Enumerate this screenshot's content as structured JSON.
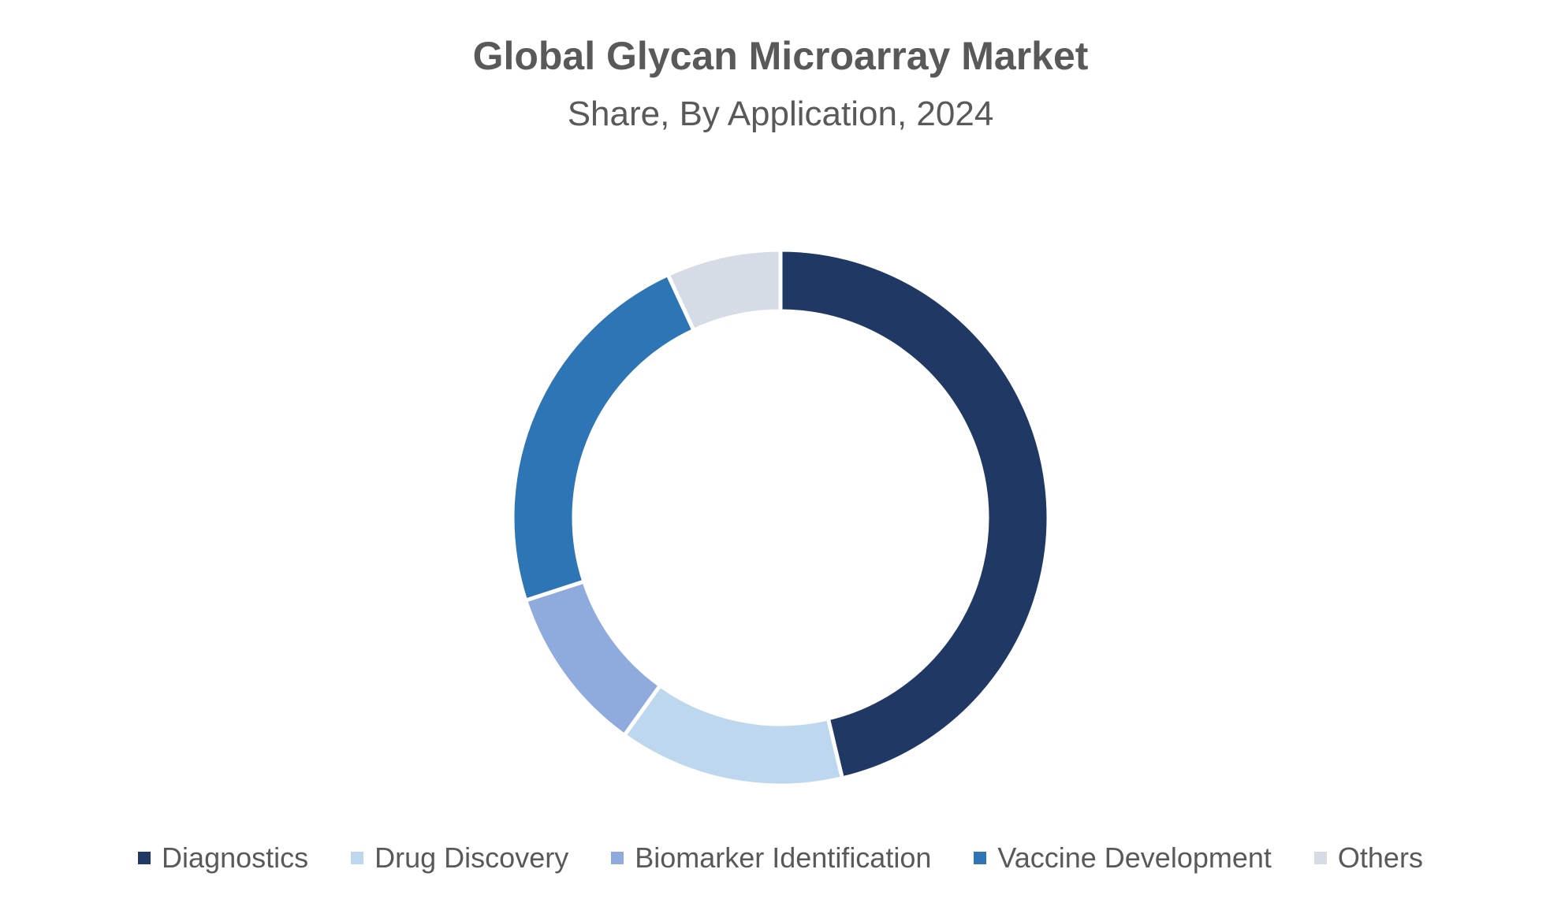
{
  "chart_data": {
    "type": "pie",
    "variant": "donut",
    "title": "Global Glycan Microarray Market",
    "subtitle": "Share, By Application, 2024",
    "legend_position": "bottom",
    "categories": [
      "Diagnostics",
      "Drug Discovery",
      "Biomarker Identification",
      "Vaccine Development",
      "Others"
    ],
    "values": [
      46.3,
      13.6,
      10.1,
      23.1,
      6.9
    ],
    "colors": [
      "#203864",
      "#bdd7ee",
      "#8faadc",
      "#2e75b6",
      "#d6dce5"
    ]
  }
}
